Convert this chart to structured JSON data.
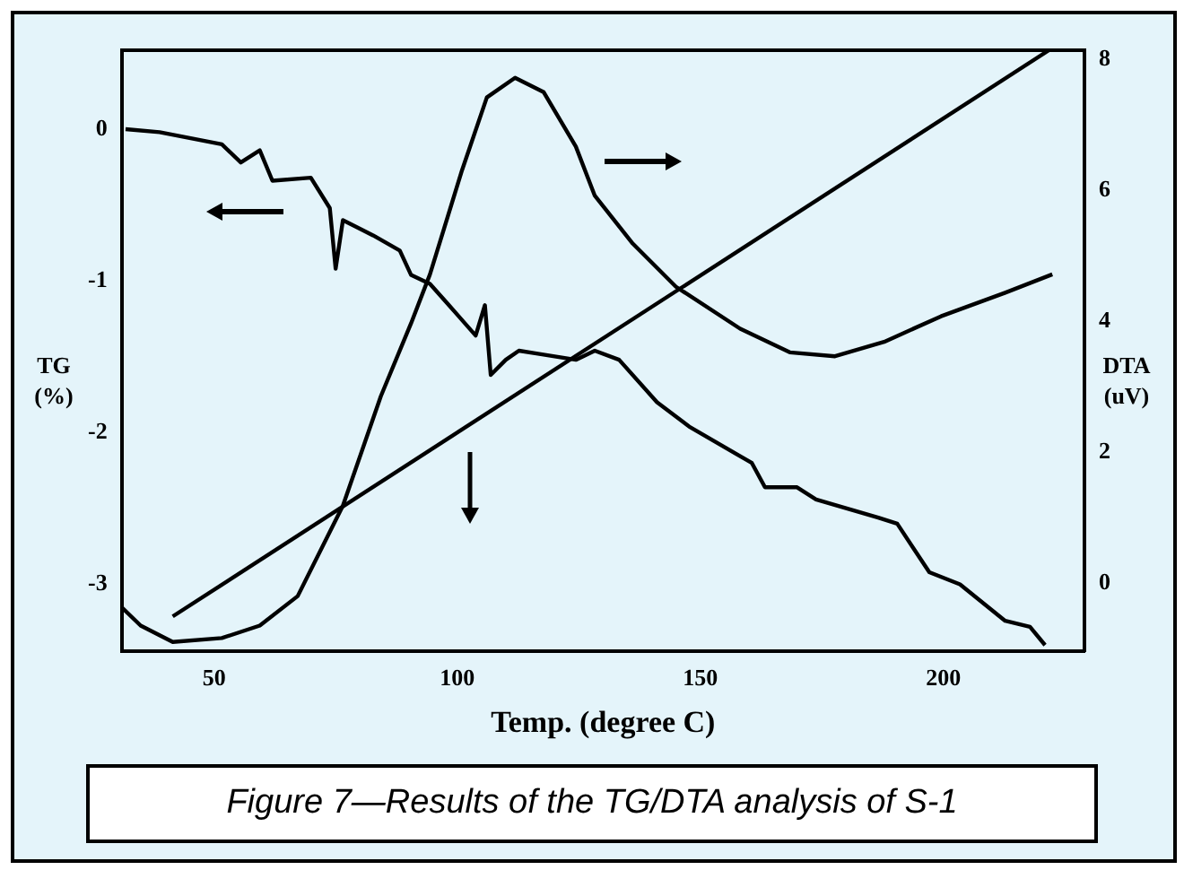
{
  "chart_data": {
    "type": "line",
    "xlabel": "Temp. (degree C)",
    "ylabel": "TG (%)",
    "y2label": "DTA (uV)",
    "annotations": [
      "Figure 7—Results of the TG/DTA analysis of S-1"
    ],
    "xlim": [
      31,
      229
    ],
    "xticks": [
      50,
      100,
      150,
      200
    ],
    "ylim": [
      -3.44,
      0.52
    ],
    "yticks": [
      -3,
      -2,
      -1,
      0
    ],
    "y2lim": [
      -1.03,
      8.14
    ],
    "y2ticks": [
      0,
      2,
      4,
      6,
      8
    ],
    "grid": false,
    "legend": false,
    "marker": "none",
    "line_style": "solid",
    "series": [
      {
        "color": "#000000",
        "axis": "y",
        "x": [
          31.8,
          38.8,
          51.6,
          55.5,
          59.4,
          62,
          69.9,
          73.8,
          75,
          76.5,
          82.7,
          88.2,
          90.5,
          94.4,
          98.3,
          103.8,
          105.7,
          106.9,
          110,
          112.7,
          116.6,
          124.4,
          128.3,
          133.3,
          141.1,
          147.7,
          160.6,
          163.3,
          169.9,
          173.8,
          186.6,
          190.5,
          197.1,
          203.4,
          212.7,
          217.8,
          220.9
        ],
        "values": [
          0,
          -0.02,
          -0.1,
          -0.22,
          -0.14,
          -0.34,
          -0.32,
          -0.52,
          -0.92,
          -0.6,
          -0.7,
          -0.8,
          -0.96,
          -1.02,
          -1.16,
          -1.36,
          -1.16,
          -1.62,
          -1.52,
          -1.46,
          -1.48,
          -1.52,
          -1.46,
          -1.52,
          -1.8,
          -1.96,
          -2.2,
          -2.36,
          -2.36,
          -2.44,
          -2.56,
          -2.6,
          -2.92,
          -3,
          -3.24,
          -3.28,
          -3.4
        ]
      },
      {
        "color": "#000000",
        "axis": "y2",
        "x": [
          31,
          34.9,
          41.5,
          51.6,
          59.4,
          67.2,
          76.5,
          84.3,
          90.5,
          94.4,
          101,
          106.1,
          111.9,
          117.8,
          124.4,
          128.3,
          136.1,
          145,
          158.2,
          168.4,
          177.7,
          187.8,
          199.5,
          212.7,
          222.4
        ],
        "values": [
          -0.36,
          -0.64,
          -0.89,
          -0.83,
          -0.64,
          -0.19,
          1.19,
          2.86,
          3.97,
          4.72,
          6.31,
          7.42,
          7.72,
          7.5,
          6.67,
          5.92,
          5.19,
          4.53,
          3.89,
          3.53,
          3.47,
          3.69,
          4.08,
          4.44,
          4.72
        ]
      },
      {
        "color": "#000000",
        "axis": "y2",
        "x": [
          41.5,
          221.7
        ],
        "values": [
          -0.5,
          8.14
        ]
      }
    ]
  }
}
